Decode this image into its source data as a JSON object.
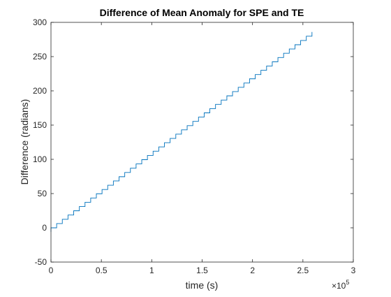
{
  "chart_data": {
    "type": "line",
    "title": "Difference of Mean Anomaly for SPE and TE",
    "xlabel": "time (s)",
    "ylabel": "Difference (radians)",
    "x_exponent_label": "×10",
    "x_exponent_power": "5",
    "xlim": [
      0,
      300000
    ],
    "ylim": [
      -50,
      300
    ],
    "xticks": [
      0,
      50000,
      100000,
      150000,
      200000,
      250000,
      300000
    ],
    "xtick_labels": [
      "0",
      "0.5",
      "1",
      "1.5",
      "2",
      "2.5",
      "3"
    ],
    "yticks": [
      -50,
      0,
      50,
      100,
      150,
      200,
      250,
      300
    ],
    "ytick_labels": [
      "-50",
      "0",
      "50",
      "100",
      "150",
      "200",
      "250",
      "300"
    ],
    "grid": false,
    "box": true,
    "series": [
      {
        "color": "#0072BD",
        "style": "staircase",
        "x_start": 0,
        "x_end": 259000,
        "y_start": 0,
        "y_end": 286,
        "step_count": 46,
        "min_y": -6
      }
    ]
  }
}
